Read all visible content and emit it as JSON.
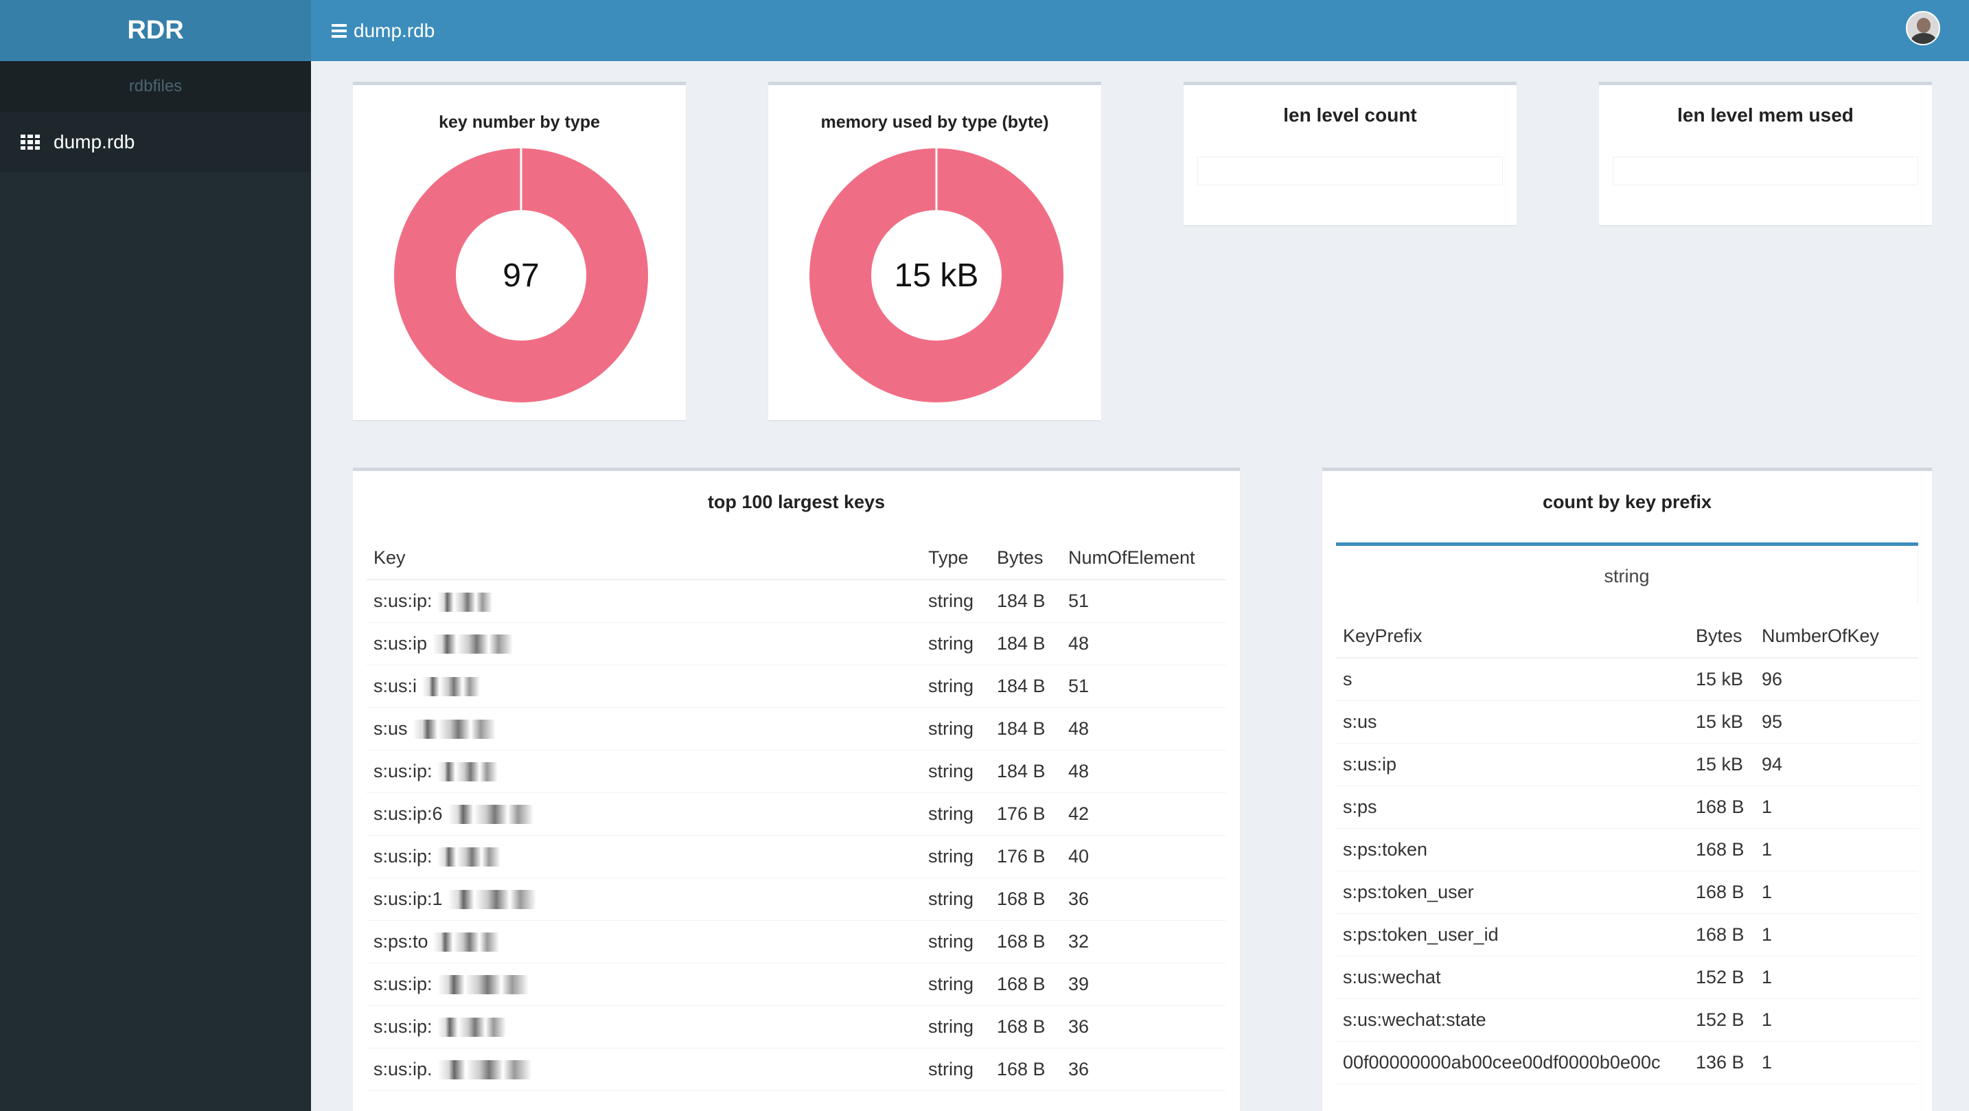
{
  "sidebar": {
    "logo": "RDR",
    "header": "rdbfiles",
    "items": [
      {
        "label": "dump.rdb"
      }
    ]
  },
  "navbar": {
    "title": "dump.rdb"
  },
  "cards": {
    "key_number": {
      "title": "key number by type",
      "center": "97"
    },
    "memory_used": {
      "title": "memory used by type (byte)",
      "center": "15 kB"
    },
    "len_level_count": {
      "title": "len level count"
    },
    "len_level_mem": {
      "title": "len level mem used"
    }
  },
  "largest_keys": {
    "title": "top 100 largest keys",
    "columns": [
      "Key",
      "Type",
      "Bytes",
      "NumOfElement"
    ],
    "rows": [
      {
        "key": "s:us:ip:",
        "type": "string",
        "bytes": "184 B",
        "num": "51"
      },
      {
        "key": "s:us:ip",
        "type": "string",
        "bytes": "184 B",
        "num": "48"
      },
      {
        "key": "s:us:i",
        "type": "string",
        "bytes": "184 B",
        "num": "51"
      },
      {
        "key": "s:us",
        "type": "string",
        "bytes": "184 B",
        "num": "48"
      },
      {
        "key": "s:us:ip:",
        "type": "string",
        "bytes": "184 B",
        "num": "48"
      },
      {
        "key": "s:us:ip:6",
        "type": "string",
        "bytes": "176 B",
        "num": "42"
      },
      {
        "key": "s:us:ip:",
        "type": "string",
        "bytes": "176 B",
        "num": "40"
      },
      {
        "key": "s:us:ip:1",
        "type": "string",
        "bytes": "168 B",
        "num": "36"
      },
      {
        "key": "s:ps:to",
        "type": "string",
        "bytes": "168 B",
        "num": "32"
      },
      {
        "key": "s:us:ip:",
        "type": "string",
        "bytes": "168 B",
        "num": "39"
      },
      {
        "key": "s:us:ip:",
        "type": "string",
        "bytes": "168 B",
        "num": "36"
      },
      {
        "key": "s:us:ip.",
        "type": "string",
        "bytes": "168 B",
        "num": "36"
      }
    ]
  },
  "prefix": {
    "title": "count by key prefix",
    "tab": "string",
    "columns": [
      "KeyPrefix",
      "Bytes",
      "NumberOfKey"
    ],
    "rows": [
      {
        "prefix": "s",
        "bytes": "15 kB",
        "count": "96"
      },
      {
        "prefix": "s:us",
        "bytes": "15 kB",
        "count": "95"
      },
      {
        "prefix": "s:us:ip",
        "bytes": "15 kB",
        "count": "94"
      },
      {
        "prefix": "s:ps",
        "bytes": "168 B",
        "count": "1"
      },
      {
        "prefix": "s:ps:token",
        "bytes": "168 B",
        "count": "1"
      },
      {
        "prefix": "s:ps:token_user",
        "bytes": "168 B",
        "count": "1"
      },
      {
        "prefix": "s:ps:token_user_id",
        "bytes": "168 B",
        "count": "1"
      },
      {
        "prefix": "s:us:wechat",
        "bytes": "152 B",
        "count": "1"
      },
      {
        "prefix": "s:us:wechat:state",
        "bytes": "152 B",
        "count": "1"
      },
      {
        "prefix": "00f00000000ab00cee00df0000b0e00c",
        "bytes": "136 B",
        "count": "1"
      }
    ]
  },
  "colors": {
    "donut": "#f06e85",
    "navbar": "#3c8dbc",
    "sidebar": "#222d32"
  }
}
